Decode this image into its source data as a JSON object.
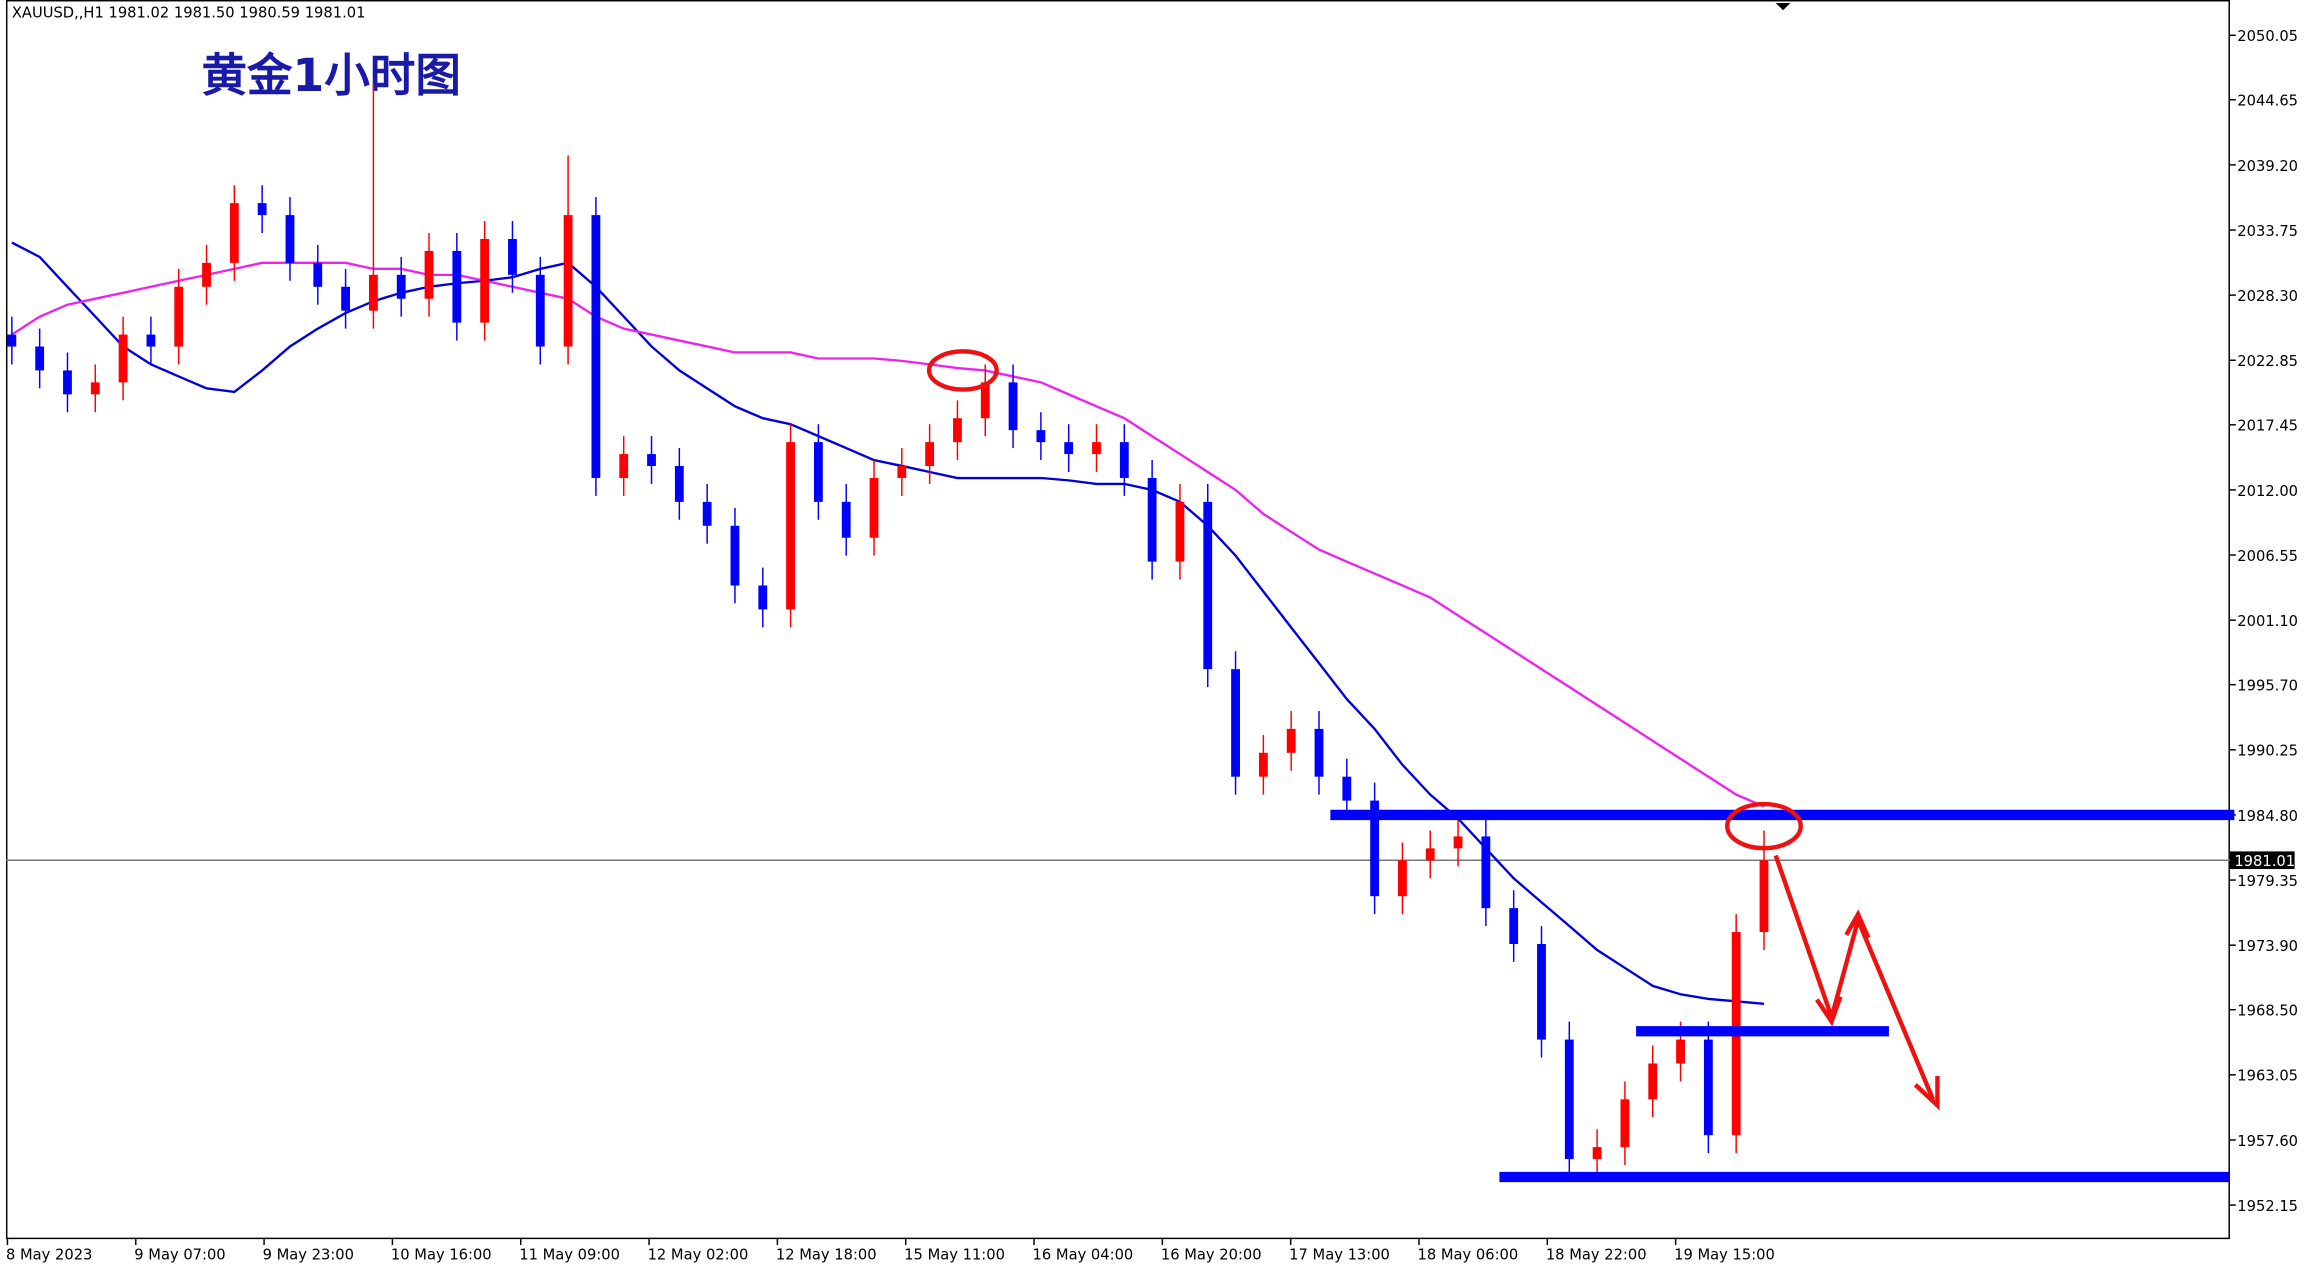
{
  "chart_data": {
    "type": "candlestick",
    "header": "XAUUSD,,H1  1981.02 1981.50 1980.59 1981.01",
    "title": "黄金1小时图",
    "xtick_labels": [
      "8 May 2023",
      "9 May 07:00",
      "9 May 23:00",
      "10 May 16:00",
      "11 May 09:00",
      "12 May 02:00",
      "12 May 18:00",
      "15 May 11:00",
      "16 May 04:00",
      "16 May 20:00",
      "17 May 13:00",
      "18 May 06:00",
      "18 May 22:00",
      "19 May 15:00"
    ],
    "ylim": [
      1949.3,
      2053.0
    ],
    "yticks": [
      2050.05,
      2044.65,
      {
        "value": 2039.2,
        "label": "2039.20"
      },
      2033.75,
      {
        "value": 2028.3,
        "label": "2028.30"
      },
      2022.85,
      2017.45,
      {
        "value": 2012.0,
        "label": "2012.00"
      },
      2006.55,
      {
        "value": 2001.1,
        "label": "2001.10"
      },
      {
        "value": 1995.7,
        "label": "1995.70"
      },
      1990.25,
      {
        "value": 1984.8,
        "label": "1984.80"
      },
      1979.35,
      {
        "value": 1973.9,
        "label": "1973.90"
      },
      {
        "value": 1968.5,
        "label": "1968.50"
      },
      1963.05,
      {
        "value": 1957.6,
        "label": "1957.60"
      },
      1952.15
    ],
    "last_price": 1981.01,
    "up_color": "#ff0000",
    "down_color": "#0000ff",
    "open": [
      2025,
      2024,
      2022,
      2020,
      2021,
      2025,
      2024,
      2029,
      2031,
      2036,
      2035,
      2031,
      2029,
      2027,
      2030,
      2028,
      2032,
      2026,
      2033,
      2030,
      2024,
      2035,
      2013,
      2015,
      2014,
      2011,
      2009,
      2004,
      2002,
      2016,
      2011,
      2008,
      2013,
      2014,
      2016,
      2018,
      2021,
      2017,
      2016,
      2015,
      2016,
      2013,
      2006,
      2011,
      1997,
      1988,
      1990,
      1992,
      1988,
      1986,
      1978,
      1981,
      1982,
      1983,
      1977,
      1974,
      1966,
      1956,
      1957,
      1961,
      1964,
      1966,
      1958,
      1975
    ],
    "high": [
      2026.5,
      2025.5,
      2023.5,
      2022.5,
      2026.5,
      2026.5,
      2030.5,
      2032.5,
      2037.5,
      2037.5,
      2036.5,
      2032.5,
      2030.5,
      2046,
      2031.5,
      2033.5,
      2033.5,
      2034.5,
      2034.5,
      2031.5,
      2040,
      2036.5,
      2016.5,
      2016.5,
      2015.5,
      2012.5,
      2010.5,
      2005.5,
      2017.5,
      2017.5,
      2012.5,
      2014.5,
      2015.5,
      2017.5,
      2019.5,
      2022.5,
      2022.5,
      2018.5,
      2017.5,
      2017.5,
      2017.5,
      2014.5,
      2012.5,
      2012.5,
      1998.5,
      1991.5,
      1993.5,
      1993.5,
      1989.5,
      1987.5,
      1982.5,
      1983.5,
      1984.5,
      1984.5,
      1978.5,
      1975.5,
      1967.5,
      1958.5,
      1962.5,
      1965.5,
      1967.5,
      1967.5,
      1976.5,
      1983.5
    ],
    "low": [
      2022.5,
      2020.5,
      2018.5,
      2018.5,
      2019.5,
      2022.5,
      2022.5,
      2027.5,
      2029.5,
      2033.5,
      2029.5,
      2027.5,
      2025.5,
      2025.5,
      2026.5,
      2026.5,
      2024.5,
      2024.5,
      2028.5,
      2022.5,
      2022.5,
      2011.5,
      2011.5,
      2012.5,
      2009.5,
      2007.5,
      2002.5,
      2000.5,
      2000.5,
      2009.5,
      2006.5,
      2006.5,
      2011.5,
      2012.5,
      2014.5,
      2016.5,
      2015.5,
      2014.5,
      2013.5,
      2013.5,
      2011.5,
      2004.5,
      2004.5,
      1995.5,
      1986.5,
      1986.5,
      1988.5,
      1986.5,
      1984.5,
      1976.5,
      1976.5,
      1979.5,
      1980.5,
      1975.5,
      1972.5,
      1964.5,
      1954.5,
      1954.5,
      1955.5,
      1959.5,
      1962.5,
      1956.5,
      1956.5,
      1973.5
    ],
    "close": [
      2024,
      2022,
      2020,
      2021,
      2025,
      2024,
      2029,
      2031,
      2036,
      2035,
      2031,
      2029,
      2027,
      2030,
      2028,
      2032,
      2026,
      2033,
      2030,
      2024,
      2035,
      2013,
      2015,
      2014,
      2011,
      2009,
      2004,
      2002,
      2016,
      2011,
      2008,
      2013,
      2014,
      2016,
      2018,
      2021,
      2017,
      2016,
      2015,
      2016,
      2013,
      2006,
      2011,
      1997,
      1988,
      1990,
      1992,
      1988,
      1986,
      1978,
      1981,
      1982,
      1983,
      1977,
      1974,
      1966,
      1956,
      1957,
      1961,
      1964,
      1966,
      1958,
      1975,
      1981
    ],
    "series": [
      {
        "color": "#0000dd",
        "values": [
          2032.7,
          2031.5,
          2029,
          2026.5,
          2024,
          2022.5,
          2021.5,
          2020.5,
          2020.2,
          2022,
          2024,
          2025.5,
          2026.8,
          2027.8,
          2028.5,
          2029,
          2029.3,
          2029.5,
          2029.8,
          2030.5,
          2031,
          2029,
          2026.5,
          2024,
          2022,
          2020.5,
          2019,
          2018,
          2017.5,
          2016.5,
          2015.5,
          2014.5,
          2014,
          2013.5,
          2013,
          2013,
          2013,
          2013,
          2012.8,
          2012.5,
          2012.5,
          2012,
          2011,
          2009,
          2006.5,
          2003.5,
          2000.5,
          1997.5,
          1994.5,
          1992,
          1989,
          1986.5,
          1984.5,
          1982,
          1979.5,
          1977.5,
          1975.5,
          1973.5,
          1972,
          1970.5,
          1969.8,
          1969.4,
          1969.2,
          1969
        ]
      },
      {
        "color": "#ee22ee",
        "values": [
          2025,
          2026.5,
          2027.5,
          2028,
          2028.5,
          2029,
          2029.5,
          2030,
          2030.5,
          2031,
          2031,
          2031,
          2031,
          2030.5,
          2030.5,
          2030,
          2030,
          2029.5,
          2029,
          2028.5,
          2028,
          2026.5,
          2025.5,
          2025,
          2024.5,
          2024,
          2023.5,
          2023.5,
          2023.5,
          2023,
          2023,
          2023,
          2022.8,
          2022.5,
          2022.2,
          2022,
          2021.5,
          2021,
          2020,
          2019,
          2018,
          2016.5,
          2015,
          2013.5,
          2012,
          2010,
          2008.5,
          2007,
          2006,
          2005,
          2004,
          2003,
          2001.5,
          2000,
          1998.5,
          1997,
          1995.5,
          1994,
          1992.5,
          1991,
          1989.5,
          1988,
          1986.5,
          1985.5
        ]
      }
    ],
    "levels": [
      1984.8,
      1966.7,
      1954.5
    ],
    "level_color": "#0000ff"
  }
}
